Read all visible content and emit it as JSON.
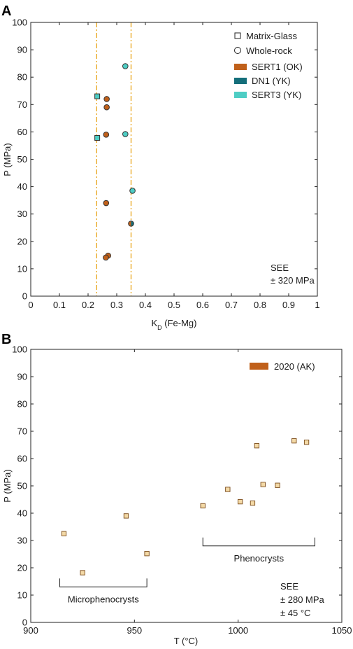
{
  "chart_data": [
    {
      "panel": "A",
      "type": "scatter",
      "xlabel": "K",
      "xlabel_sub": "D",
      "xlabel_suffix": " (Fe-Mg)",
      "ylabel": "P (MPa)",
      "xlim": [
        0,
        1
      ],
      "ylim": [
        0,
        100
      ],
      "xticks": [
        "0",
        "0.1",
        "0.2",
        "0.3",
        "0.4",
        "0.5",
        "0.6",
        "0.7",
        "0.8",
        "0.9",
        "1"
      ],
      "yticks": [
        "0",
        "10",
        "20",
        "30",
        "40",
        "50",
        "60",
        "70",
        "80",
        "90",
        "100"
      ],
      "vlines": [
        0.23,
        0.35
      ],
      "vline_color": "#e8a317",
      "legend_shapes": [
        {
          "label": "Matrix-Glass",
          "marker": "square"
        },
        {
          "label": "Whole-rock",
          "marker": "circle"
        }
      ],
      "legend_colors": [
        {
          "label": "SERT1 (OK)",
          "color": "#c0601a"
        },
        {
          "label": "DN1 (YK)",
          "color": "#146e7a"
        },
        {
          "label": "SERT3 (YK)",
          "color": "#4ecdc4"
        }
      ],
      "series": [
        {
          "name": "SERT1 (OK)",
          "color": "#c0601a",
          "marker": "circle",
          "points": [
            [
              0.265,
              72
            ],
            [
              0.265,
              69
            ],
            [
              0.263,
              59
            ],
            [
              0.263,
              34
            ],
            [
              0.27,
              14.8
            ],
            [
              0.262,
              14.1
            ]
          ]
        },
        {
          "name": "SERT3 (YK)",
          "color": "#4ecdc4",
          "marker": "circle",
          "points": [
            [
              0.33,
              84
            ],
            [
              0.33,
              59.2
            ],
            [
              0.355,
              38.5
            ]
          ]
        },
        {
          "name": "SERT1 (OK)",
          "color": "#c0601a",
          "marker": "circle-halfteal",
          "points": [
            [
              0.35,
              26.5
            ]
          ]
        },
        {
          "name": "SERT3 (YK)",
          "color": "#4ecdc4",
          "marker": "square",
          "points": [
            [
              0.232,
              73
            ],
            [
              0.232,
              57.8
            ]
          ]
        }
      ],
      "annotations": [
        "SEE",
        "± 320 MPa"
      ]
    },
    {
      "panel": "B",
      "type": "scatter",
      "xlabel": "T (°C)",
      "ylabel": "P (MPa)",
      "xlim": [
        900,
        1050
      ],
      "ylim": [
        0,
        100
      ],
      "xticks": [
        "900",
        "950",
        "1000",
        "1050"
      ],
      "yticks": [
        "0",
        "10",
        "20",
        "30",
        "40",
        "50",
        "60",
        "70",
        "80",
        "90",
        "100"
      ],
      "legend_colors": [
        {
          "label": "2020 (AK)",
          "color": "#c0601a"
        }
      ],
      "series": [
        {
          "name": "2020 (AK)",
          "color": "#f3d9a6",
          "marker": "square",
          "points": [
            [
              916,
              32.5
            ],
            [
              925,
              18.2
            ],
            [
              946,
              39
            ],
            [
              956,
              25.2
            ],
            [
              983,
              42.7
            ],
            [
              995,
              48.7
            ],
            [
              1001,
              44.2
            ],
            [
              1007,
              43.7
            ],
            [
              1009,
              64.7
            ],
            [
              1012,
              50.5
            ],
            [
              1019,
              50.2
            ],
            [
              1027,
              66.5
            ],
            [
              1033,
              66
            ]
          ]
        }
      ],
      "groups": [
        {
          "label": "Microphenocrysts",
          "x_range": [
            914,
            956
          ],
          "y": 13
        },
        {
          "label": "Phenocrysts",
          "x_range": [
            983,
            1037
          ],
          "y": 28
        }
      ],
      "annotations": [
        "SEE",
        "± 280 MPa",
        "± 45 °C"
      ]
    }
  ]
}
